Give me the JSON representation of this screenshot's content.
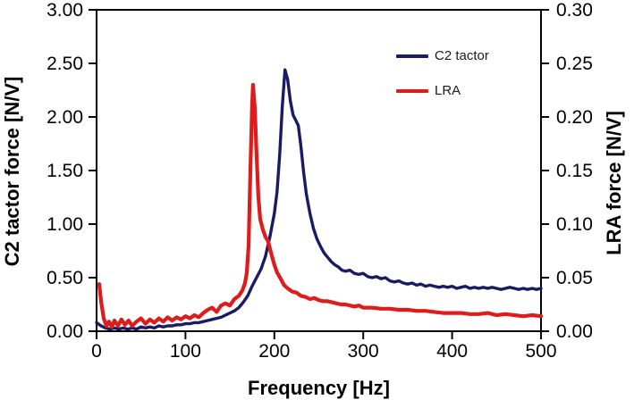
{
  "chart_data": {
    "type": "line",
    "title": "",
    "xlabel": "Frequency [Hz]",
    "ylabel_left": "C2 tactor force [N/V]",
    "ylabel_right": "LRA force [N/V]",
    "x_range": [
      0,
      500
    ],
    "y_left_range": [
      0,
      3.0
    ],
    "y_right_range": [
      0,
      0.3
    ],
    "x_tick_labels": [
      "0",
      "100",
      "200",
      "300",
      "400",
      "500"
    ],
    "y_left_tick_labels": [
      "0.00",
      "0.50",
      "1.00",
      "1.50",
      "2.00",
      "2.50",
      "3.00"
    ],
    "y_right_tick_labels": [
      "0.00",
      "0.05",
      "0.10",
      "0.15",
      "0.20",
      "0.25",
      "0.30"
    ],
    "grid": false,
    "legend_position": "inside-top-right",
    "axis_color": "#000000",
    "series": [
      {
        "name": "C2 tactor",
        "axis": "left",
        "color": "#1b1b64",
        "width": 3.4,
        "x": [
          0,
          5,
          10,
          15,
          20,
          25,
          30,
          35,
          40,
          45,
          50,
          55,
          60,
          65,
          70,
          75,
          80,
          85,
          90,
          95,
          100,
          105,
          110,
          115,
          120,
          125,
          130,
          135,
          140,
          145,
          150,
          155,
          160,
          165,
          170,
          175,
          180,
          185,
          190,
          195,
          200,
          203,
          206,
          209,
          212,
          215,
          218,
          221,
          224,
          227,
          230,
          233,
          236,
          240,
          244,
          248,
          252,
          256,
          260,
          264,
          268,
          272,
          276,
          280,
          285,
          290,
          295,
          300,
          305,
          310,
          315,
          320,
          325,
          330,
          335,
          340,
          345,
          350,
          355,
          360,
          365,
          370,
          375,
          380,
          385,
          390,
          395,
          400,
          405,
          410,
          415,
          420,
          425,
          430,
          435,
          440,
          445,
          450,
          455,
          460,
          465,
          470,
          475,
          480,
          485,
          490,
          495,
          500
        ],
        "y": [
          0.08,
          0.05,
          0.03,
          0.02,
          0.03,
          0.02,
          0.03,
          0.02,
          0.03,
          0.02,
          0.04,
          0.03,
          0.04,
          0.03,
          0.05,
          0.04,
          0.05,
          0.05,
          0.06,
          0.06,
          0.07,
          0.07,
          0.08,
          0.08,
          0.09,
          0.1,
          0.11,
          0.12,
          0.13,
          0.15,
          0.17,
          0.19,
          0.22,
          0.27,
          0.33,
          0.42,
          0.5,
          0.58,
          0.7,
          0.88,
          1.1,
          1.3,
          1.65,
          2.1,
          2.44,
          2.35,
          2.15,
          2.02,
          1.97,
          1.92,
          1.72,
          1.48,
          1.28,
          1.1,
          0.96,
          0.86,
          0.79,
          0.73,
          0.69,
          0.65,
          0.62,
          0.6,
          0.57,
          0.56,
          0.57,
          0.54,
          0.53,
          0.54,
          0.51,
          0.5,
          0.51,
          0.49,
          0.5,
          0.47,
          0.46,
          0.47,
          0.45,
          0.44,
          0.45,
          0.43,
          0.44,
          0.42,
          0.43,
          0.42,
          0.41,
          0.42,
          0.41,
          0.42,
          0.4,
          0.41,
          0.42,
          0.4,
          0.41,
          0.4,
          0.41,
          0.4,
          0.41,
          0.4,
          0.39,
          0.4,
          0.41,
          0.4,
          0.39,
          0.4,
          0.39,
          0.4,
          0.39,
          0.4
        ]
      },
      {
        "name": "LRA",
        "axis": "right",
        "color": "#dd1c1c",
        "width": 4.2,
        "x": [
          3,
          5,
          8,
          11,
          14,
          17,
          20,
          24,
          28,
          32,
          36,
          40,
          45,
          50,
          55,
          60,
          65,
          70,
          75,
          80,
          85,
          90,
          95,
          100,
          105,
          110,
          115,
          120,
          125,
          130,
          135,
          140,
          145,
          150,
          155,
          160,
          164,
          167,
          169,
          171,
          173,
          175,
          176,
          178,
          180,
          182,
          184,
          187,
          190,
          193,
          196,
          200,
          203,
          207,
          211,
          215,
          220,
          225,
          230,
          235,
          240,
          245,
          250,
          255,
          260,
          265,
          270,
          275,
          280,
          285,
          290,
          295,
          300,
          310,
          320,
          330,
          340,
          350,
          360,
          370,
          380,
          390,
          400,
          410,
          420,
          430,
          440,
          450,
          460,
          470,
          480,
          490,
          500
        ],
        "y": [
          0.044,
          0.028,
          0.012,
          0.005,
          0.009,
          0.004,
          0.01,
          0.005,
          0.011,
          0.006,
          0.01,
          0.005,
          0.009,
          0.012,
          0.007,
          0.011,
          0.008,
          0.012,
          0.009,
          0.013,
          0.01,
          0.013,
          0.011,
          0.014,
          0.012,
          0.015,
          0.013,
          0.017,
          0.02,
          0.022,
          0.018,
          0.024,
          0.026,
          0.024,
          0.03,
          0.033,
          0.038,
          0.045,
          0.055,
          0.08,
          0.15,
          0.21,
          0.23,
          0.209,
          0.165,
          0.126,
          0.105,
          0.095,
          0.088,
          0.084,
          0.074,
          0.062,
          0.055,
          0.049,
          0.043,
          0.04,
          0.037,
          0.036,
          0.033,
          0.032,
          0.03,
          0.031,
          0.029,
          0.028,
          0.028,
          0.027,
          0.026,
          0.025,
          0.025,
          0.024,
          0.023,
          0.024,
          0.022,
          0.022,
          0.021,
          0.021,
          0.02,
          0.02,
          0.019,
          0.019,
          0.018,
          0.017,
          0.017,
          0.017,
          0.016,
          0.016,
          0.017,
          0.015,
          0.016,
          0.015,
          0.014,
          0.015,
          0.014
        ]
      }
    ]
  }
}
